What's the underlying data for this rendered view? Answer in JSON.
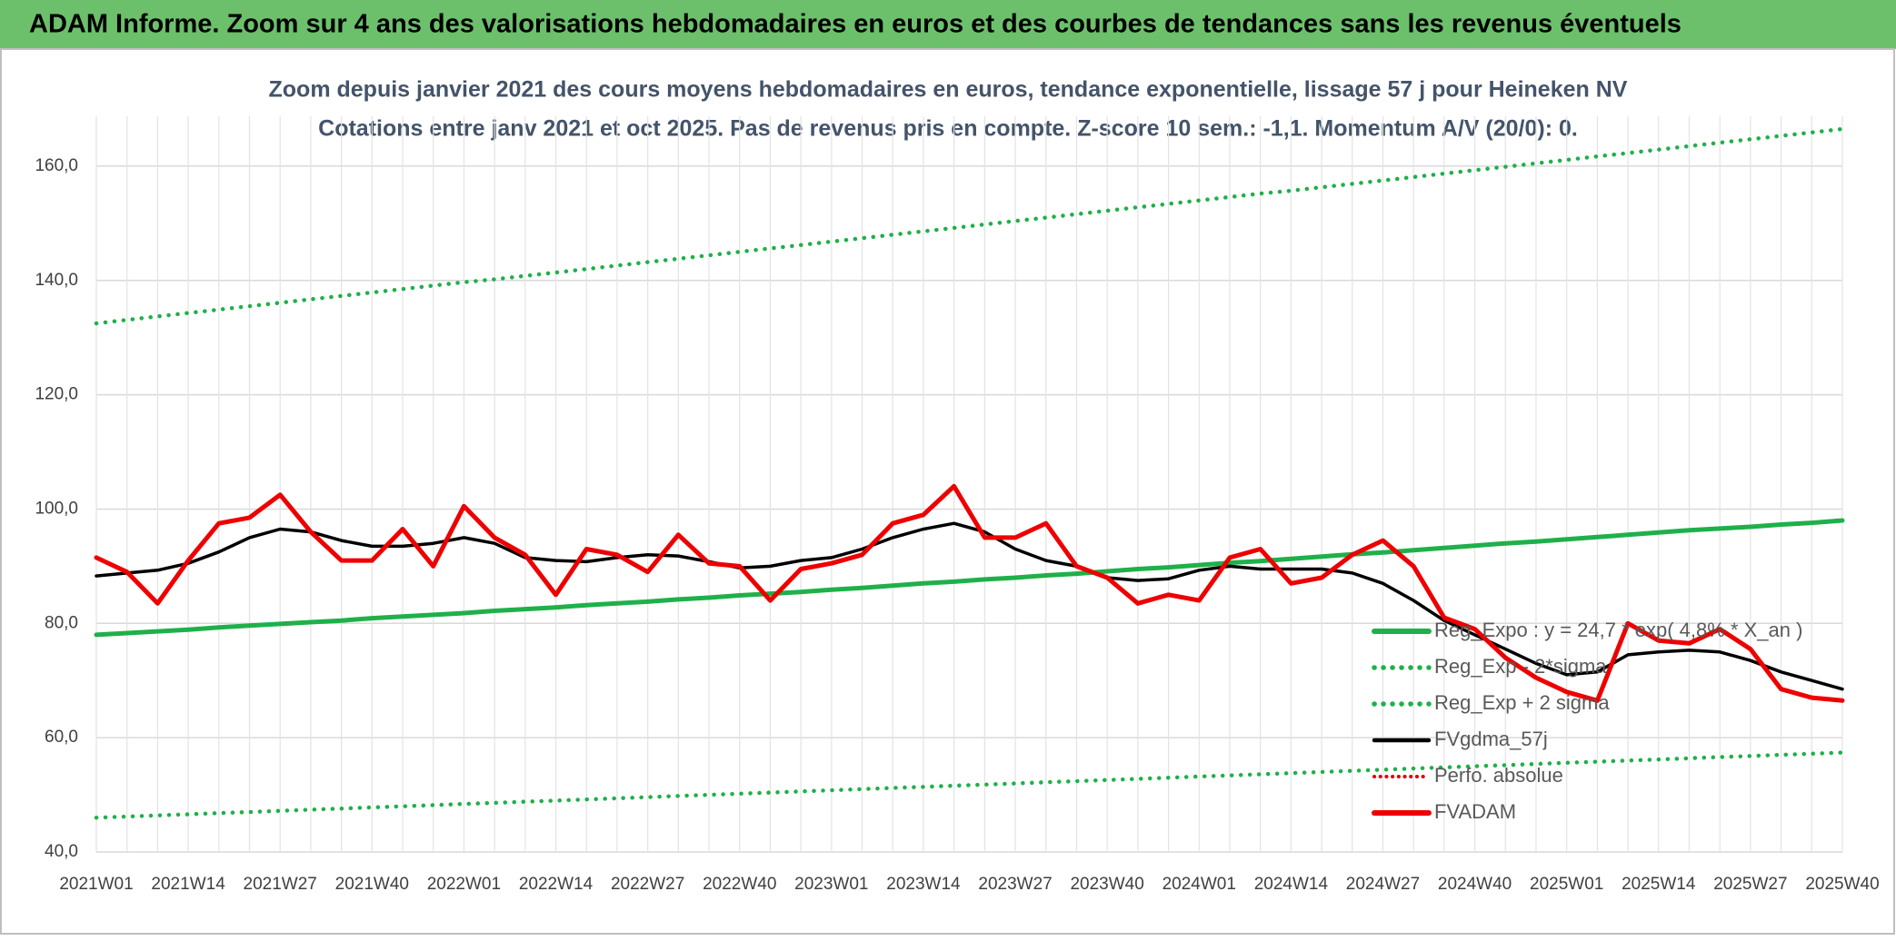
{
  "header": {
    "title": "ADAM Informe. Zoom sur 4 ans des valorisations hebdomadaires en euros et des courbes de tendances sans les revenus éventuels"
  },
  "chart_data": {
    "type": "line",
    "title": "Zoom depuis janvier 2021 des cours moyens hebdomadaires en euros, tendance exponentielle, lissage 57 j pour Heineken NV",
    "subtitle": "Cotations entre janv 2021 et oct 2025. Pas de revenus pris en compte. Z-score 10 sem.: -1,1. Momentum A/V (20/0): 0.",
    "categories": [
      "2021W01",
      null,
      null,
      "2021W14",
      null,
      null,
      "2021W27",
      null,
      null,
      "2021W40",
      null,
      null,
      "2022W01",
      null,
      null,
      "2022W14",
      null,
      null,
      "2022W27",
      null,
      null,
      "2022W40",
      null,
      null,
      "2023W01",
      null,
      null,
      "2023W14",
      null,
      null,
      "2023W27",
      null,
      null,
      "2023W40",
      null,
      null,
      "2024W01",
      null,
      null,
      "2024W14",
      null,
      null,
      "2024W27",
      null,
      null,
      "2024W40",
      null,
      null,
      "2025W01",
      null,
      null,
      "2025W14",
      null,
      null,
      "2025W27",
      null,
      null,
      "2025W40"
    ],
    "ylim": [
      40,
      170
    ],
    "yticks": [
      {
        "value": 40,
        "label": "40,0"
      },
      {
        "value": 60,
        "label": "60,0"
      },
      {
        "value": 80,
        "label": "80,0"
      },
      {
        "value": 100,
        "label": "100,0"
      },
      {
        "value": 120,
        "label": "120,0"
      },
      {
        "value": 140,
        "label": "140,0"
      },
      {
        "value": 160,
        "label": "160,0"
      }
    ],
    "grid": true,
    "legend": "lower right",
    "series": [
      {
        "name": "Reg_Expo : y = 24,7 * exp( 4,8% * X_an )",
        "color": "#1fb04a",
        "style": "solid",
        "linewidth": 5,
        "values": [
          78.0,
          78.3,
          78.6,
          78.9,
          79.3,
          79.6,
          79.9,
          80.2,
          80.5,
          80.9,
          81.2,
          81.5,
          81.8,
          82.2,
          82.5,
          82.8,
          83.2,
          83.5,
          83.8,
          84.2,
          84.5,
          84.9,
          85.2,
          85.5,
          85.9,
          86.2,
          86.6,
          87.0,
          87.3,
          87.7,
          88.0,
          88.4,
          88.7,
          89.1,
          89.5,
          89.8,
          90.2,
          90.6,
          90.9,
          91.3,
          91.7,
          92.1,
          92.4,
          92.8,
          93.2,
          93.6,
          94.0,
          94.3,
          94.7,
          95.1,
          95.5,
          95.9,
          96.3,
          96.6,
          96.9,
          97.3,
          97.6,
          98.0
        ]
      },
      {
        "name": "Reg_Exp - 2*sigma",
        "color": "#1fb04a",
        "style": "dotted",
        "linewidth": 4.5,
        "values": [
          46.0,
          46.2,
          46.4,
          46.6,
          46.8,
          47.0,
          47.2,
          47.4,
          47.6,
          47.8,
          48.0,
          48.2,
          48.4,
          48.6,
          48.8,
          49.0,
          49.2,
          49.4,
          49.6,
          49.8,
          50.0,
          50.2,
          50.4,
          50.6,
          50.8,
          51.0,
          51.2,
          51.4,
          51.6,
          51.8,
          52.0,
          52.2,
          52.4,
          52.6,
          52.8,
          53.0,
          53.2,
          53.4,
          53.6,
          53.8,
          54.0,
          54.2,
          54.4,
          54.6,
          54.8,
          55.0,
          55.2,
          55.4,
          55.6,
          55.8,
          56.0,
          56.2,
          56.4,
          56.6,
          56.8,
          57.0,
          57.2,
          57.4
        ]
      },
      {
        "name": "Reg_Exp + 2 sigma",
        "color": "#1fb04a",
        "style": "dotted",
        "linewidth": 4.5,
        "values": [
          132.5,
          133.1,
          133.7,
          134.3,
          134.9,
          135.5,
          136.1,
          136.7,
          137.3,
          137.9,
          138.5,
          139.1,
          139.7,
          140.2,
          140.8,
          141.4,
          142.0,
          142.6,
          143.2,
          143.8,
          144.4,
          145.0,
          145.6,
          146.2,
          146.8,
          147.4,
          148.0,
          148.6,
          149.2,
          149.8,
          150.4,
          151.0,
          151.6,
          152.2,
          152.8,
          153.4,
          154.0,
          154.6,
          155.2,
          155.7,
          156.3,
          156.9,
          157.5,
          158.1,
          158.7,
          159.3,
          159.9,
          160.5,
          161.1,
          161.7,
          162.3,
          162.9,
          163.5,
          164.1,
          164.7,
          165.3,
          165.9,
          166.5
        ]
      },
      {
        "name": "FVgdma_57j",
        "color": "#000000",
        "style": "solid",
        "linewidth": 3.5,
        "values": [
          88.3,
          88.8,
          89.3,
          90.5,
          92.5,
          95,
          96.5,
          96,
          94.5,
          93.5,
          93.5,
          94,
          95,
          94,
          91.5,
          91,
          90.8,
          91.5,
          92,
          91.8,
          90.8,
          89.7,
          90,
          91,
          91.5,
          93,
          95,
          96.5,
          97.5,
          96,
          93,
          91,
          90,
          88,
          87.5,
          87.8,
          89.3,
          90,
          89.5,
          89.5,
          89.5,
          88.8,
          87,
          84,
          80.5,
          78,
          75.5,
          73,
          71,
          71.5,
          74.5,
          75,
          75.3,
          75,
          73.5,
          71.5,
          70,
          68.5
        ]
      },
      {
        "name": "Perfo. absolue",
        "color": "#e00000",
        "style": "dotted",
        "linewidth": 3,
        "values": [
          null,
          null,
          null,
          null,
          null,
          null,
          null,
          null,
          null,
          null,
          null,
          null,
          null,
          null,
          null,
          null,
          null,
          null,
          null,
          null,
          null,
          null,
          null,
          null,
          null,
          null,
          null,
          null,
          null,
          null,
          null,
          null,
          null,
          null,
          null,
          null,
          null,
          null,
          null,
          null,
          null,
          null,
          null,
          null,
          null,
          null,
          null,
          null,
          null,
          null,
          null,
          null,
          null,
          null,
          null,
          null,
          null,
          null
        ]
      },
      {
        "name": "FVADAM",
        "color": "#ee0000",
        "style": "solid",
        "linewidth": 5,
        "values": [
          91.5,
          89,
          83.5,
          91,
          97.5,
          98.5,
          102.5,
          96,
          91,
          91,
          96.5,
          90,
          100.5,
          95,
          92,
          85,
          93,
          92,
          89,
          95.5,
          90.5,
          90,
          84,
          89.5,
          90.5,
          92,
          97.5,
          99,
          104,
          95,
          95,
          97.5,
          90,
          88,
          83.5,
          85,
          84,
          91.5,
          93,
          87,
          88,
          92,
          94.5,
          90,
          81,
          79,
          74,
          70.5,
          68,
          66.5,
          80,
          77,
          76.5,
          79,
          75.5,
          68.5,
          67,
          66.5
        ]
      }
    ]
  }
}
